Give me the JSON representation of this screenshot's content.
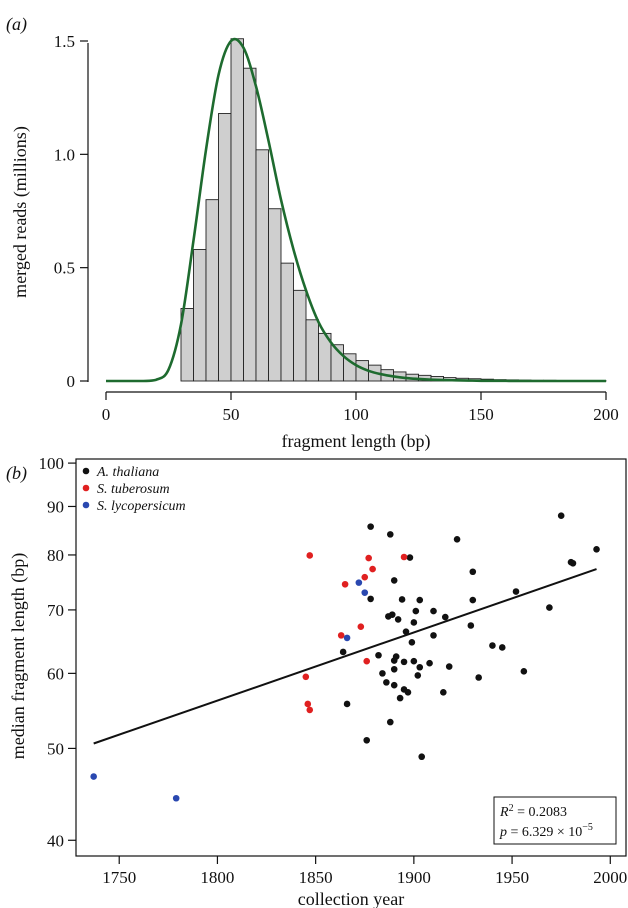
{
  "chart_data": [
    {
      "type": "bar",
      "panel_label": "(a)",
      "xlabel": "fragment length (bp)",
      "ylabel": "merged reads (millions)",
      "xlim": [
        0,
        200
      ],
      "ylim": [
        0,
        1.5
      ],
      "xticks": [
        0,
        50,
        100,
        150,
        200
      ],
      "yticks": [
        0,
        0.5,
        1.0,
        1.5
      ],
      "ytick_labels": [
        "0",
        "0.5",
        "1.0",
        "1.5"
      ],
      "bin_width": 5,
      "bin_starts": [
        30,
        35,
        40,
        45,
        50,
        55,
        60,
        65,
        70,
        75,
        80,
        85,
        90,
        95,
        100,
        105,
        110,
        115,
        120,
        125,
        130,
        135,
        140,
        145,
        150,
        155,
        160,
        165,
        170,
        175,
        180,
        185,
        190,
        195
      ],
      "values": [
        0.32,
        0.58,
        0.8,
        1.18,
        1.51,
        1.38,
        1.02,
        0.76,
        0.52,
        0.4,
        0.27,
        0.21,
        0.16,
        0.12,
        0.09,
        0.07,
        0.05,
        0.04,
        0.03,
        0.025,
        0.02,
        0.015,
        0.012,
        0.01,
        0.008,
        0.006,
        0.005,
        0.004,
        0.003,
        0.003,
        0.002,
        0.002,
        0.001,
        0.001
      ],
      "bar_color": "#cfcfcf",
      "fit_curve": {
        "x": [
          0,
          5,
          10,
          15,
          20,
          25,
          30,
          35,
          40,
          45,
          50,
          55,
          60,
          65,
          70,
          75,
          80,
          85,
          90,
          95,
          100,
          105,
          110,
          115,
          120,
          125,
          130,
          135,
          140,
          145,
          150,
          160,
          170,
          180,
          190,
          200
        ],
        "y": [
          0,
          0,
          0,
          0,
          0.005,
          0.05,
          0.25,
          0.62,
          1.02,
          1.35,
          1.5,
          1.47,
          1.3,
          1.06,
          0.8,
          0.58,
          0.4,
          0.26,
          0.17,
          0.11,
          0.07,
          0.045,
          0.03,
          0.02,
          0.013,
          0.009,
          0.006,
          0.004,
          0.003,
          0.002,
          0.001,
          0.0005,
          0,
          0,
          0,
          0
        ],
        "color": "#1e6b2f"
      }
    },
    {
      "type": "scatter",
      "panel_label": "(b)",
      "xlabel": "collection year",
      "ylabel": "median fragment length (bp)",
      "log_y": true,
      "xlim": [
        1728,
        2008
      ],
      "ylim": [
        38.5,
        101
      ],
      "xticks": [
        1750,
        1800,
        1850,
        1900,
        1950,
        2000
      ],
      "yticks": [
        40,
        50,
        60,
        70,
        80,
        90,
        100
      ],
      "legend_position": "top-left",
      "series": [
        {
          "name": "A. thaliana",
          "color": "#111111",
          "points": [
            [
              1864,
              63.2
            ],
            [
              1866,
              55.7
            ],
            [
              1876,
              51
            ],
            [
              1878,
              71.9
            ],
            [
              1878,
              85.7
            ],
            [
              1882,
              62.7
            ],
            [
              1884,
              60
            ],
            [
              1886,
              58.7
            ],
            [
              1887,
              68.9
            ],
            [
              1888,
              84.1
            ],
            [
              1888,
              53.3
            ],
            [
              1889,
              69.2
            ],
            [
              1890,
              61.9
            ],
            [
              1890,
              75.2
            ],
            [
              1890,
              60.6
            ],
            [
              1890,
              58.3
            ],
            [
              1891,
              62.5
            ],
            [
              1892,
              68.4
            ],
            [
              1893,
              56.5
            ],
            [
              1894,
              71.8
            ],
            [
              1895,
              57.7
            ],
            [
              1895,
              61.7
            ],
            [
              1896,
              66.4
            ],
            [
              1897,
              57.3
            ],
            [
              1898,
              79.5
            ],
            [
              1899,
              64.7
            ],
            [
              1900,
              61.8
            ],
            [
              1900,
              67.9
            ],
            [
              1901,
              69.8
            ],
            [
              1902,
              59.7
            ],
            [
              1903,
              71.7
            ],
            [
              1903,
              60.9
            ],
            [
              1904,
              49
            ],
            [
              1908,
              61.5
            ],
            [
              1910,
              65.8
            ],
            [
              1910,
              69.8
            ],
            [
              1915,
              57.3
            ],
            [
              1916,
              68.8
            ],
            [
              1918,
              61
            ],
            [
              1922,
              83.1
            ],
            [
              1929,
              67.4
            ],
            [
              1930,
              76.8
            ],
            [
              1930,
              71.7
            ],
            [
              1933,
              59.4
            ],
            [
              1940,
              64.2
            ],
            [
              1945,
              63.9
            ],
            [
              1952,
              73.2
            ],
            [
              1956,
              60.3
            ],
            [
              1969,
              70.4
            ],
            [
              1975,
              88
            ],
            [
              1980,
              78.6
            ],
            [
              1981,
              78.4
            ],
            [
              1993,
              81.1
            ]
          ]
        },
        {
          "name": "S. tuberosum",
          "color": "#e02020",
          "points": [
            [
              1845,
              59.5
            ],
            [
              1846,
              55.7
            ],
            [
              1847,
              79.9
            ],
            [
              1847,
              54.9
            ],
            [
              1863,
              65.8
            ],
            [
              1865,
              74.5
            ],
            [
              1873,
              67.2
            ],
            [
              1875,
              75.8
            ],
            [
              1876,
              61.8
            ],
            [
              1877,
              79.4
            ],
            [
              1879,
              77.3
            ],
            [
              1895,
              79.6
            ]
          ]
        },
        {
          "name": "S. lycopersicum",
          "color": "#2a48b0",
          "points": [
            [
              1737,
              46.7
            ],
            [
              1779,
              44.3
            ],
            [
              1866,
              65.4
            ],
            [
              1872,
              74.8
            ],
            [
              1875,
              73
            ]
          ]
        }
      ],
      "regression_line": {
        "x": [
          1737,
          1993
        ],
        "y": [
          50.6,
          77.3
        ]
      },
      "stats": {
        "r2_label": "R",
        "r2_sup": "2",
        "r2_value": " = 0.2083",
        "p_label": "p",
        "p_value": " = 6.329 × 10",
        "p_exp": "−5"
      }
    }
  ]
}
